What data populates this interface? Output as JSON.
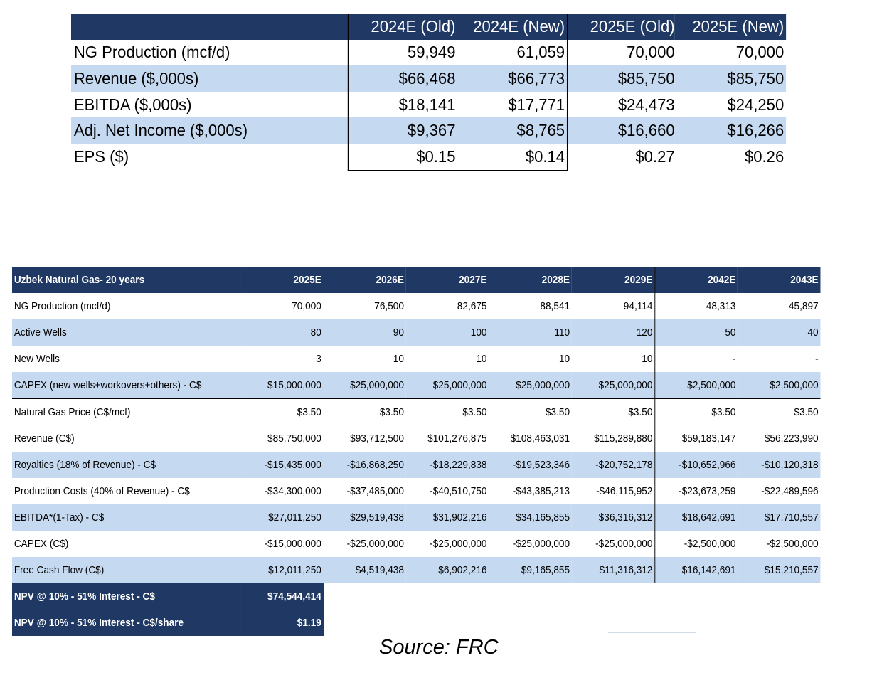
{
  "table1": {
    "headers": [
      "",
      "2024E (Old)",
      "2024E (New)",
      "2025E (Old)",
      "2025E (New)"
    ],
    "rows": [
      {
        "label": "NG Production (mcf/d)",
        "values": [
          "59,949",
          "61,059",
          "70,000",
          "70,000"
        ]
      },
      {
        "label": "Revenue ($,000s)",
        "values": [
          "$66,468",
          "$66,773",
          "$85,750",
          "$85,750"
        ]
      },
      {
        "label": "EBITDA ($,000s)",
        "values": [
          "$18,141",
          "$17,771",
          "$24,473",
          "$24,250"
        ]
      },
      {
        "label": "Adj. Net Income ($,000s)",
        "values": [
          "$9,367",
          "$8,765",
          "$16,660",
          "$16,266"
        ]
      },
      {
        "label": "EPS ($)",
        "values": [
          "$0.15",
          "$0.14",
          "$0.27",
          "$0.26"
        ]
      }
    ]
  },
  "table2": {
    "title": "Uzbek Natural Gas- 20 years",
    "years": [
      "2025E",
      "2026E",
      "2027E",
      "2028E",
      "2029E",
      "2042E",
      "2043E"
    ],
    "rows": [
      {
        "label": "NG Production (mcf/d)",
        "values": [
          "70,000",
          "76,500",
          "82,675",
          "88,541",
          "94,114",
          "48,313",
          "45,897"
        ]
      },
      {
        "label": "Active Wells",
        "values": [
          "80",
          "90",
          "100",
          "110",
          "120",
          "50",
          "40"
        ]
      },
      {
        "label": "New Wells",
        "values": [
          "3",
          "10",
          "10",
          "10",
          "10",
          "-",
          "-"
        ]
      },
      {
        "label": "CAPEX (new wells+workovers+others) - C$",
        "values": [
          "$15,000,000",
          "$25,000,000",
          "$25,000,000",
          "$25,000,000",
          "$25,000,000",
          "$2,500,000",
          "$2,500,000"
        ]
      },
      {
        "label": "Natural Gas Price (C$/mcf)",
        "values": [
          "$3.50",
          "$3.50",
          "$3.50",
          "$3.50",
          "$3.50",
          "$3.50",
          "$3.50"
        ]
      },
      {
        "label": "Revenue (C$)",
        "values": [
          "$85,750,000",
          "$93,712,500",
          "$101,276,875",
          "$108,463,031",
          "$115,289,880",
          "$59,183,147",
          "$56,223,990"
        ]
      },
      {
        "label": "Royalties (18% of Revenue) - C$",
        "values": [
          "-$15,435,000",
          "-$16,868,250",
          "-$18,229,838",
          "-$19,523,346",
          "-$20,752,178",
          "-$10,652,966",
          "-$10,120,318"
        ]
      },
      {
        "label": "Production Costs (40% of Revenue) - C$",
        "values": [
          "-$34,300,000",
          "-$37,485,000",
          "-$40,510,750",
          "-$43,385,213",
          "-$46,115,952",
          "-$23,673,259",
          "-$22,489,596"
        ]
      },
      {
        "label": "EBITDA*(1-Tax) - C$",
        "values": [
          "$27,011,250",
          "$29,519,438",
          "$31,902,216",
          "$34,165,855",
          "$36,316,312",
          "$18,642,691",
          "$17,710,557"
        ]
      },
      {
        "label": "CAPEX (C$)",
        "values": [
          "-$15,000,000",
          "-$25,000,000",
          "-$25,000,000",
          "-$25,000,000",
          "-$25,000,000",
          "-$2,500,000",
          "-$2,500,000"
        ]
      },
      {
        "label": "Free Cash Flow (C$)",
        "values": [
          "$12,011,250",
          "$4,519,438",
          "$6,902,216",
          "$9,165,855",
          "$11,316,312",
          "$16,142,691",
          "$15,210,557"
        ]
      }
    ],
    "npv": [
      {
        "label": "NPV @ 10% - 51% Interest - C$",
        "value": "$74,544,414"
      },
      {
        "label": "NPV @ 10% - 51% Interest - C$/share",
        "value": "$1.19"
      }
    ]
  },
  "source": "Source: FRC",
  "colors": {
    "header": "#1f3864",
    "band": "#c5d9f1"
  }
}
